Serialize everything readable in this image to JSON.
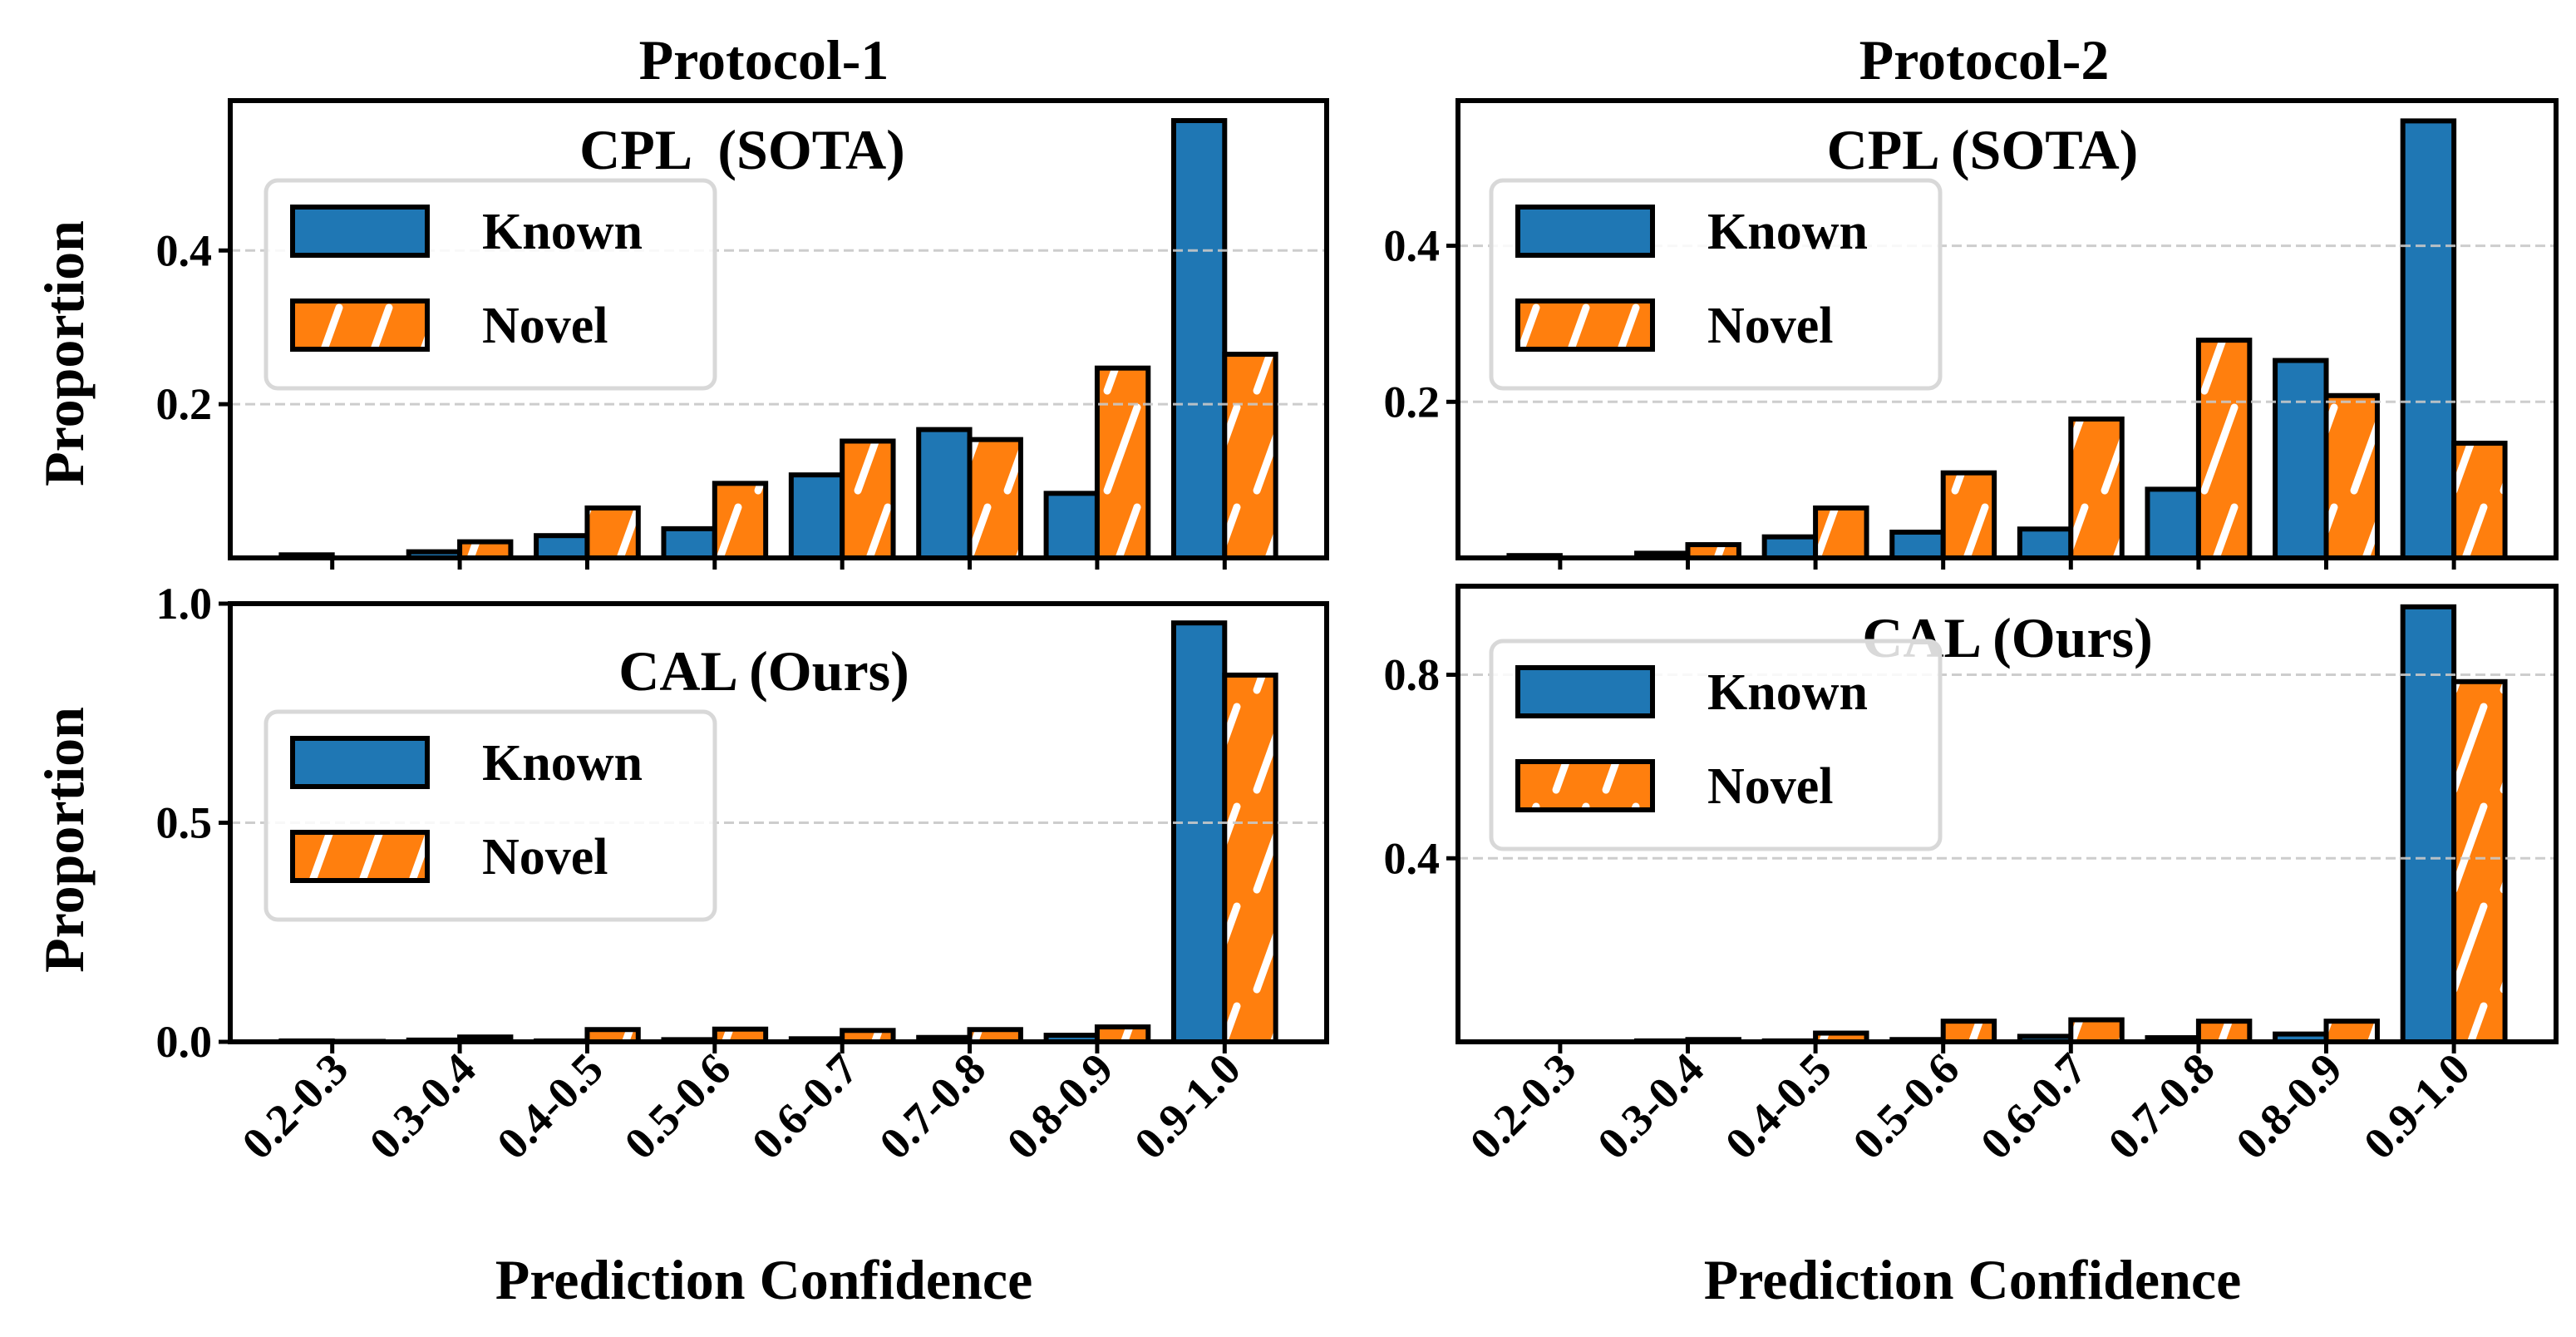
{
  "figure": {
    "column_titles": [
      "Protocol-1",
      "Protocol-2"
    ],
    "xlabel": "Prediction Confidence",
    "ylabel": "Proportion"
  },
  "colors": {
    "known": "#1f77b4",
    "novel": "#ff7f0e",
    "hatch": "#ffffff",
    "grid": "#c8c8c8"
  },
  "chart_data": [
    {
      "type": "bar",
      "panel": "top-left",
      "title": "CPL  (SOTA)",
      "column": "Protocol-1",
      "categories": [
        "0.2-0.3",
        "0.3-0.4",
        "0.4-0.5",
        "0.5-0.6",
        "0.6-0.7",
        "0.7-0.8",
        "0.8-0.9",
        "0.9-1.0"
      ],
      "series": [
        {
          "name": "Known",
          "values": [
            0.004,
            0.008,
            0.029,
            0.038,
            0.108,
            0.167,
            0.084,
            0.569
          ]
        },
        {
          "name": "Novel",
          "values": [
            0.0,
            0.021,
            0.065,
            0.097,
            0.152,
            0.154,
            0.247,
            0.265
          ]
        }
      ],
      "ylabel": "Proportion",
      "ylim": [
        0,
        0.595
      ],
      "yticks": [
        "0.2",
        "0.4"
      ],
      "ytick_values": [
        0.2,
        0.4
      ],
      "show_xticklabels": false,
      "grid": true,
      "legend": "upper-left"
    },
    {
      "type": "bar",
      "panel": "top-right",
      "title": "CPL (SOTA)",
      "column": "Protocol-2",
      "categories": [
        "0.2-0.3",
        "0.3-0.4",
        "0.4-0.5",
        "0.5-0.6",
        "0.6-0.7",
        "0.7-0.8",
        "0.8-0.9",
        "0.9-1.0"
      ],
      "series": [
        {
          "name": "Known",
          "values": [
            0.003,
            0.006,
            0.027,
            0.033,
            0.037,
            0.088,
            0.253,
            0.56
          ]
        },
        {
          "name": "Novel",
          "values": [
            0.0,
            0.017,
            0.064,
            0.109,
            0.178,
            0.279,
            0.208,
            0.147
          ]
        }
      ],
      "ylabel": "",
      "ylim": [
        0,
        0.586
      ],
      "yticks": [
        "0.2",
        "0.4"
      ],
      "ytick_values": [
        0.2,
        0.4
      ],
      "show_xticklabels": false,
      "grid": true,
      "legend": "upper-left"
    },
    {
      "type": "bar",
      "panel": "bottom-left",
      "title": "CAL (Ours)",
      "column": "Protocol-1",
      "categories": [
        "0.2-0.3",
        "0.3-0.4",
        "0.4-0.5",
        "0.5-0.6",
        "0.6-0.7",
        "0.7-0.8",
        "0.8-0.9",
        "0.9-1.0"
      ],
      "series": [
        {
          "name": "Known",
          "values": [
            0.002,
            0.004,
            0.002,
            0.005,
            0.007,
            0.01,
            0.015,
            0.956
          ]
        },
        {
          "name": "Novel",
          "values": [
            0.001,
            0.011,
            0.028,
            0.029,
            0.026,
            0.028,
            0.034,
            0.837
          ]
        }
      ],
      "ylabel": "Proportion",
      "ylim": [
        0,
        1.0
      ],
      "yticks": [
        "0.0",
        "0.5",
        "1.0"
      ],
      "ytick_values": [
        0.0,
        0.5,
        1.0
      ],
      "xlabel": "Prediction Confidence",
      "show_xticklabels": true,
      "grid": true,
      "legend": "center-left"
    },
    {
      "type": "bar",
      "panel": "bottom-right",
      "title": "CAL (Ours)",
      "column": "Protocol-2",
      "categories": [
        "0.2-0.3",
        "0.3-0.4",
        "0.4-0.5",
        "0.5-0.6",
        "0.6-0.7",
        "0.7-0.8",
        "0.8-0.9",
        "0.9-1.0"
      ],
      "series": [
        {
          "name": "Known",
          "values": [
            0.0,
            0.002,
            0.002,
            0.005,
            0.012,
            0.009,
            0.017,
            0.948
          ]
        },
        {
          "name": "Novel",
          "values": [
            0.0,
            0.005,
            0.019,
            0.045,
            0.048,
            0.045,
            0.045,
            0.785
          ]
        }
      ],
      "ylabel": "",
      "ylim": [
        0,
        0.993
      ],
      "yticks": [
        "0.4",
        "0.8"
      ],
      "ytick_values": [
        0.4,
        0.8
      ],
      "xlabel": "Prediction Confidence",
      "show_xticklabels": true,
      "grid": true,
      "legend": "upper-left"
    }
  ]
}
